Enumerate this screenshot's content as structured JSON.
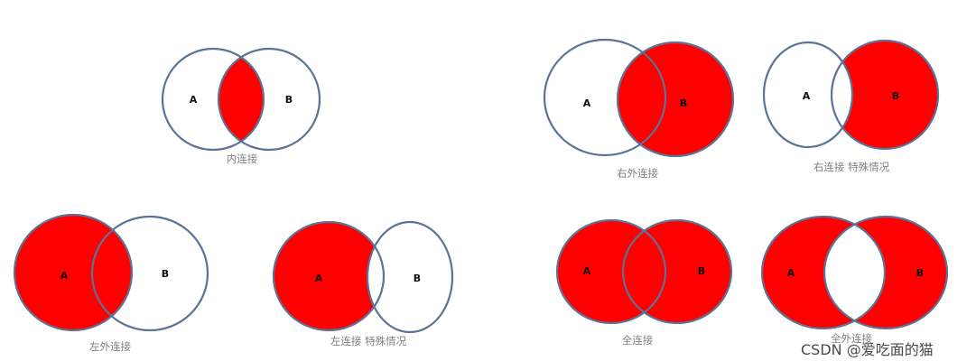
{
  "colors": {
    "fill": "#ff0000",
    "stroke": "#5b7397",
    "caption": "#7f7f7f",
    "label": "#111111"
  },
  "labels": {
    "a": "A",
    "b": "B"
  },
  "joins": [
    {
      "id": "inner",
      "caption": "内连接",
      "shaded": "A∩B"
    },
    {
      "id": "right-outer",
      "caption": "右外连接",
      "shaded": "B"
    },
    {
      "id": "right-special",
      "caption": "右连接 特殊情况",
      "shaded": "B−A"
    },
    {
      "id": "left-outer",
      "caption": "左外连接",
      "shaded": "A"
    },
    {
      "id": "left-special",
      "caption": "左连接 特殊情况",
      "shaded": "A−B"
    },
    {
      "id": "full",
      "caption": "全连接",
      "shaded": "A∪B"
    },
    {
      "id": "full-outer",
      "caption": "全外连接",
      "shaded": "A∪B−A∩B"
    }
  ],
  "watermark": "CSDN @爱吃面的猫"
}
